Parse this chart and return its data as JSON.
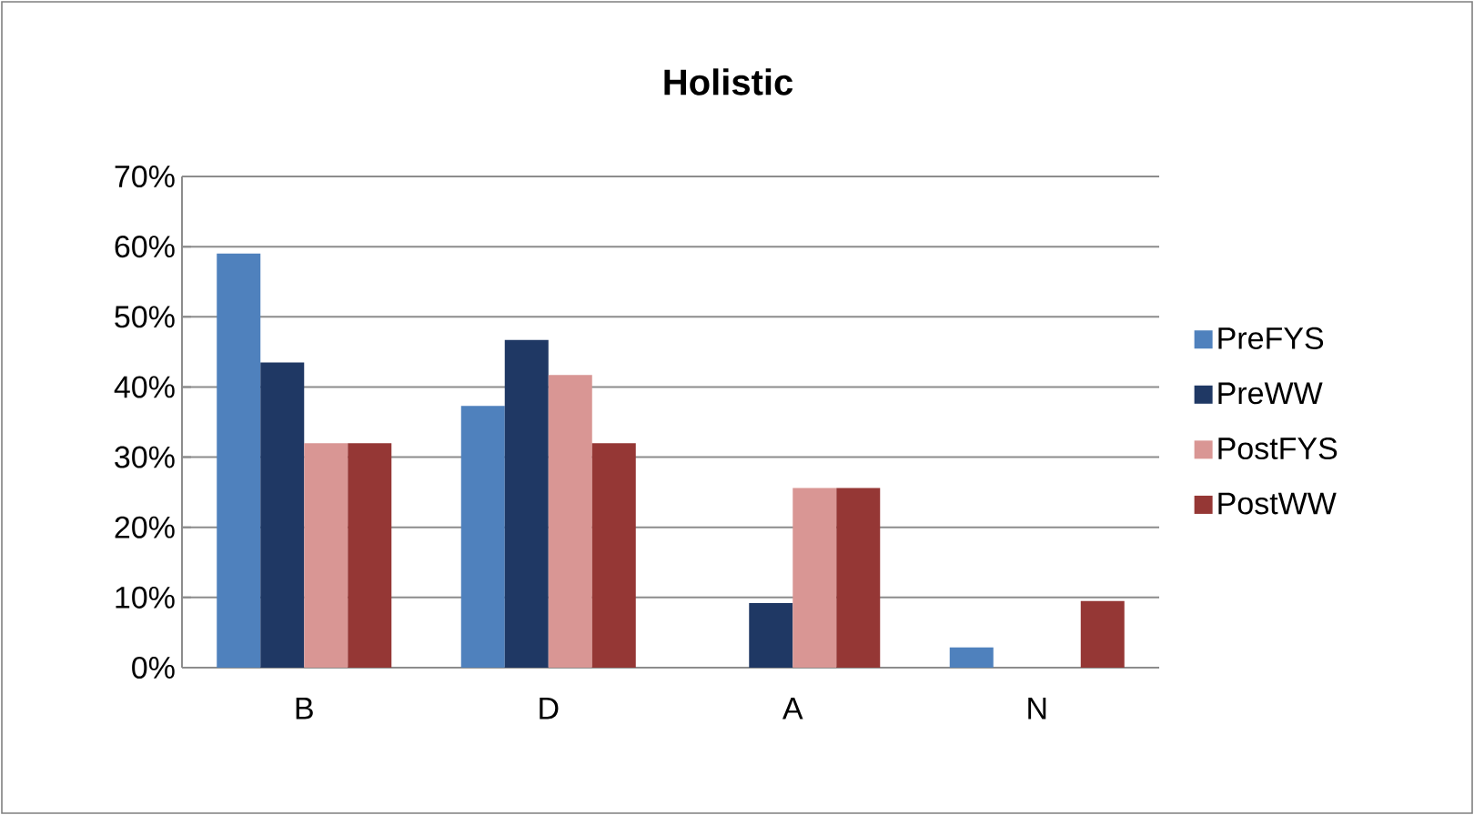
{
  "chart_data": {
    "type": "bar",
    "title": "Holistic",
    "categories": [
      "B",
      "D",
      "A",
      "N"
    ],
    "series": [
      {
        "name": "PreFYS",
        "color": "#4f81bd",
        "values": [
          59,
          37.3,
          0,
          2.9
        ]
      },
      {
        "name": "PreWW",
        "color": "#1f3864",
        "values": [
          43.5,
          46.7,
          9.2,
          0
        ]
      },
      {
        "name": "PostFYS",
        "color": "#d99694",
        "values": [
          32,
          41.7,
          25.6,
          0
        ]
      },
      {
        "name": "PostWW",
        "color": "#953735",
        "values": [
          32,
          32,
          25.6,
          9.5
        ]
      }
    ],
    "ylim": [
      0,
      70
    ],
    "yticks": [
      {
        "value": 0,
        "label": "0%"
      },
      {
        "value": 10,
        "label": "10%"
      },
      {
        "value": 20,
        "label": "20%"
      },
      {
        "value": 30,
        "label": "30%"
      },
      {
        "value": 40,
        "label": "40%"
      },
      {
        "value": 50,
        "label": "50%"
      },
      {
        "value": 60,
        "label": "60%"
      },
      {
        "value": 70,
        "label": "70%"
      }
    ],
    "grid": "y",
    "legend": "right"
  }
}
